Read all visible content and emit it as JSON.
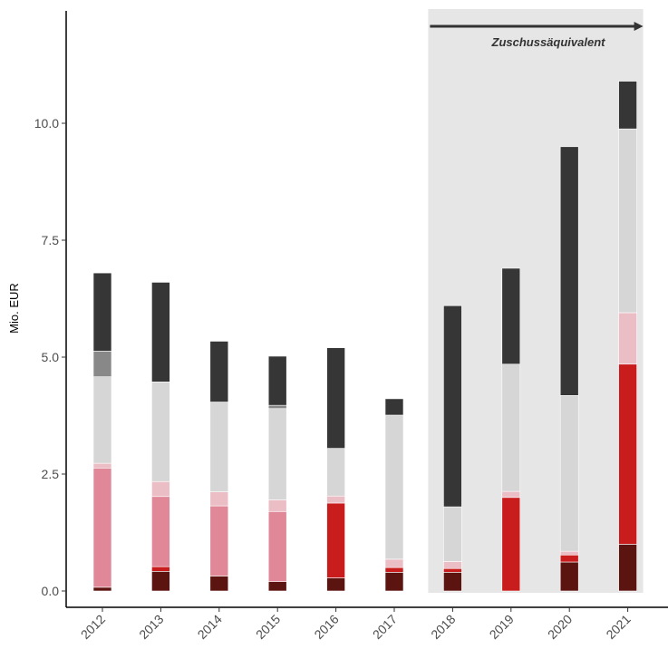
{
  "chart_data": {
    "type": "bar",
    "stacked": true,
    "categories": [
      "2012",
      "2013",
      "2014",
      "2015",
      "2016",
      "2017",
      "2018",
      "2019",
      "2020",
      "2021"
    ],
    "ylabel": "Mio. EUR",
    "xlabel": "",
    "ylim": [
      0,
      12.3
    ],
    "yticks": [
      0,
      2.5,
      5,
      7.5,
      10
    ],
    "ytick_labels": [
      "0.0",
      "2.5",
      "5.0",
      "7.5",
      "10.0"
    ],
    "grid": false,
    "legend": "none",
    "series": [
      {
        "color": "#5c1410",
        "values": [
          0.08,
          0.42,
          0.32,
          0.2,
          0.28,
          0.4,
          0.4,
          0.0,
          0.62,
          1.0
        ]
      },
      {
        "color": "#c91c1c",
        "values": [
          0.0,
          0.1,
          0.0,
          0.0,
          1.6,
          0.1,
          0.08,
          2.0,
          0.15,
          3.85
        ]
      },
      {
        "color": "#e08898",
        "values": [
          2.55,
          1.5,
          1.5,
          1.5,
          0.0,
          0.0,
          0.0,
          0.0,
          0.0,
          0.0
        ]
      },
      {
        "color": "#ebbec6",
        "values": [
          0.1,
          0.32,
          0.3,
          0.25,
          0.15,
          0.18,
          0.15,
          0.13,
          0.08,
          1.1
        ]
      },
      {
        "color": "#d6d6d6",
        "values": [
          1.85,
          2.13,
          1.92,
          1.95,
          1.02,
          3.08,
          1.17,
          2.72,
          3.33,
          3.93
        ]
      },
      {
        "color": "#888888",
        "values": [
          0.55,
          0.0,
          0.0,
          0.07,
          0.0,
          0.0,
          0.0,
          0.0,
          0.0,
          0.0
        ]
      },
      {
        "color": "#363636",
        "values": [
          1.67,
          2.13,
          1.3,
          1.05,
          2.15,
          0.35,
          4.3,
          2.05,
          5.32,
          1.02
        ]
      }
    ],
    "annotation": {
      "text": "Zuschussäquivalent",
      "start_category": "2018",
      "end_category": "2021",
      "shade_color": "#e6e6e6",
      "arrow_color": "#333333"
    }
  }
}
